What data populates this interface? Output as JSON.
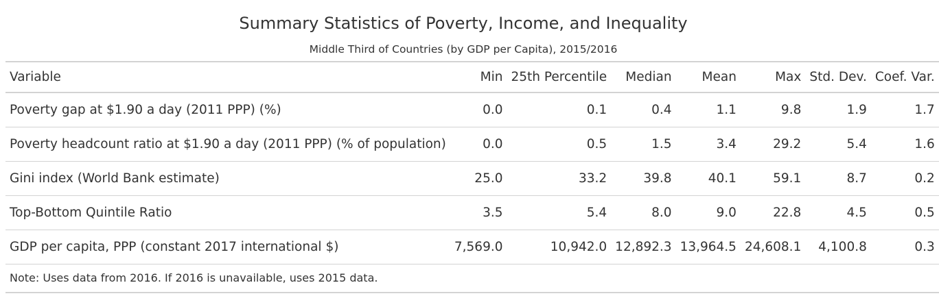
{
  "table": {
    "title": "Summary Statistics of Poverty, Income, and Inequality",
    "subtitle": "Middle Third of Countries (by GDP per Capita), 2015/2016",
    "columns": [
      "Variable",
      "Min",
      "25th Percentile",
      "Median",
      "Mean",
      "Max",
      "Std. Dev.",
      "Coef. Var."
    ],
    "rows": [
      {
        "variable": "Poverty gap at $1.90 a day (2011 PPP) (%)",
        "values": [
          "0.0",
          "0.1",
          "0.4",
          "1.1",
          "9.8",
          "1.9",
          "1.7"
        ]
      },
      {
        "variable": "Poverty headcount ratio at $1.90 a day (2011 PPP) (% of population)",
        "values": [
          "0.0",
          "0.5",
          "1.5",
          "3.4",
          "29.2",
          "5.4",
          "1.6"
        ]
      },
      {
        "variable": "Gini index (World Bank estimate)",
        "values": [
          "25.0",
          "33.2",
          "39.8",
          "40.1",
          "59.1",
          "8.7",
          "0.2"
        ]
      },
      {
        "variable": "Top-Bottom Quintile Ratio",
        "values": [
          "3.5",
          "5.4",
          "8.0",
          "9.0",
          "22.8",
          "4.5",
          "0.5"
        ]
      },
      {
        "variable": "GDP per capita, PPP (constant 2017 international $)",
        "values": [
          "7,569.0",
          "10,942.0",
          "12,892.3",
          "13,964.5",
          "24,608.1",
          "4,100.8",
          "0.3"
        ]
      }
    ],
    "note": "Note: Uses data from 2016. If 2016 is unavailable, uses 2015 data."
  },
  "colors": {
    "text": "#333333",
    "rule": "#d3d3d3",
    "background": "#ffffff"
  }
}
